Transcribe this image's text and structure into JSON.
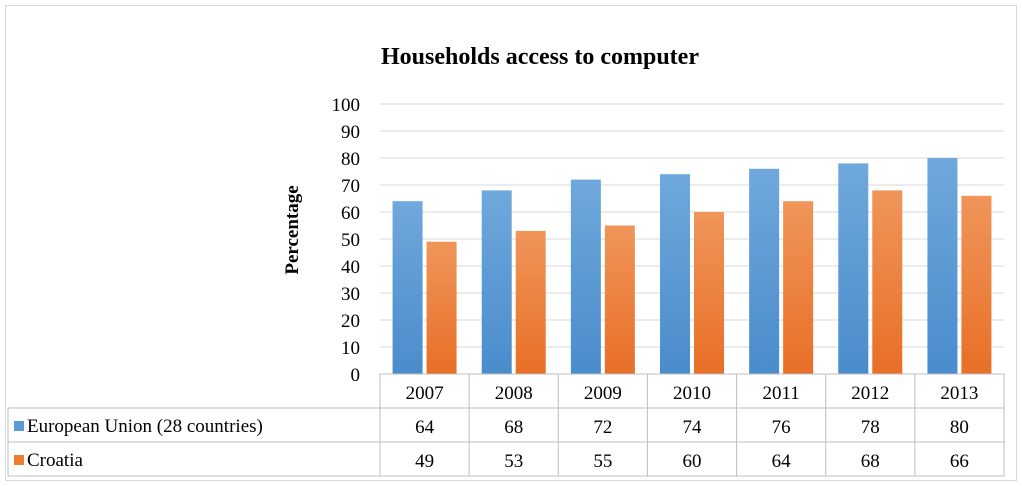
{
  "chart_data": {
    "type": "bar",
    "title": "Households access to computer",
    "ylabel": "Percentage",
    "xlabel": "",
    "categories": [
      "2007",
      "2008",
      "2009",
      "2010",
      "2011",
      "2012",
      "2013"
    ],
    "series": [
      {
        "name": "European Union (28 countries)",
        "values": [
          64,
          68,
          72,
          74,
          76,
          78,
          80
        ],
        "color": "#5b9bd5"
      },
      {
        "name": "Croatia",
        "values": [
          49,
          53,
          55,
          60,
          64,
          68,
          66
        ],
        "color": "#ed7d31"
      }
    ],
    "ylim": [
      0,
      100
    ],
    "yticks": [
      0,
      10,
      20,
      30,
      40,
      50,
      60,
      70,
      80,
      90,
      100
    ],
    "grid": true,
    "legend": "data-table-left"
  }
}
